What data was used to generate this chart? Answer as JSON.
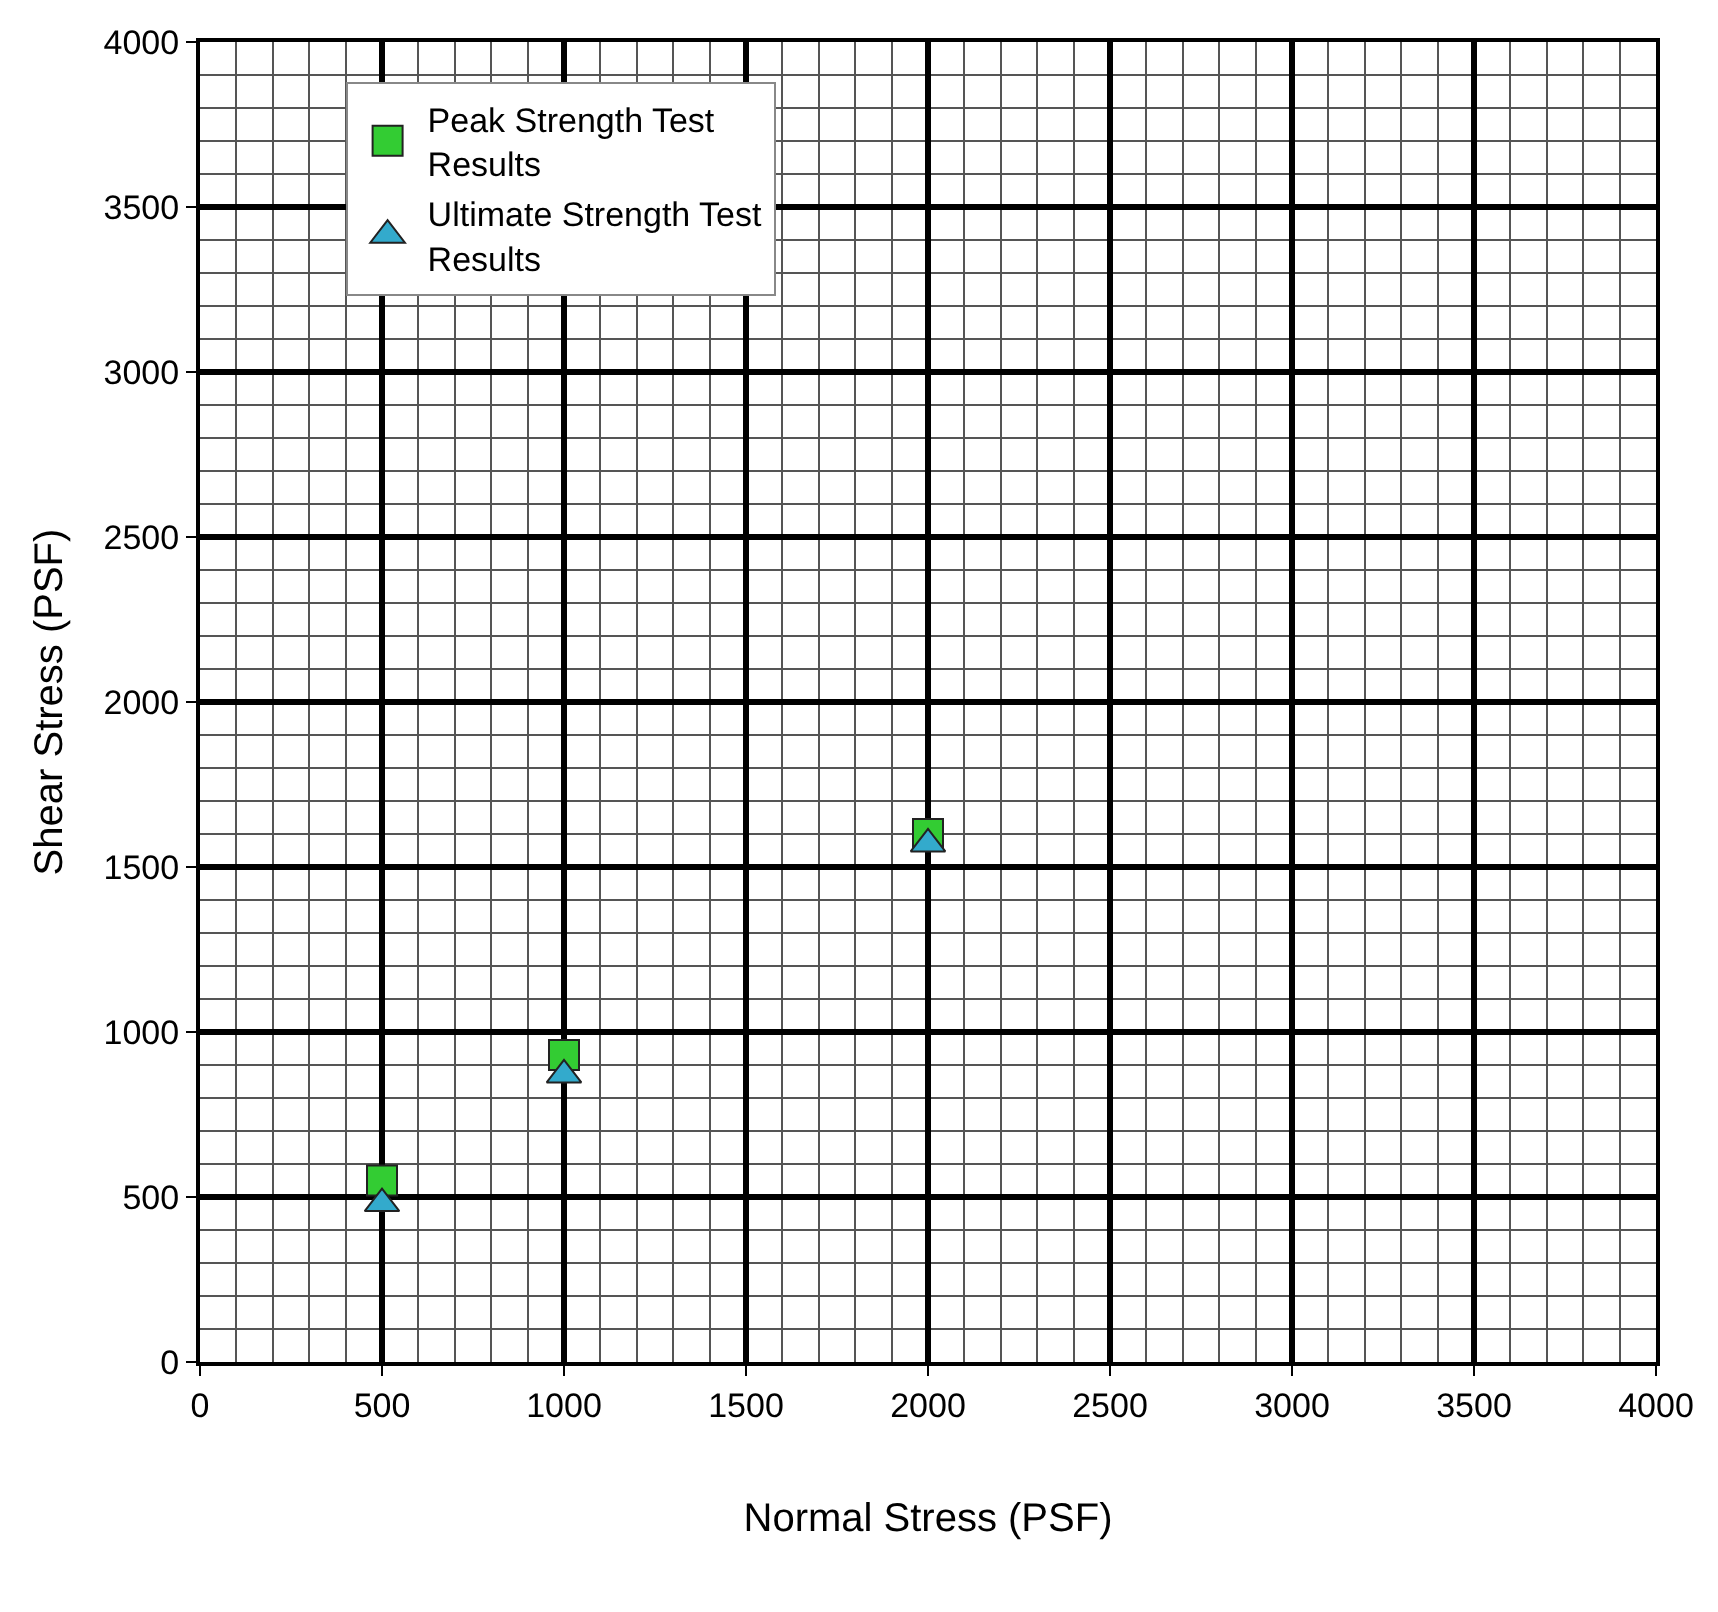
{
  "chart_data": {
    "type": "scatter",
    "xlabel": "Normal Stress (PSF)",
    "ylabel": "Shear Stress (PSF)",
    "x": [
      500,
      1000,
      2000
    ],
    "series": [
      {
        "name": "Peak Strength Test Results",
        "color": "#33cc33",
        "marker": "square",
        "values": [
          550,
          930,
          1600
        ]
      },
      {
        "name": "Ultimate Strength Test Results",
        "color": "#33aacc",
        "marker": "triangle",
        "values": [
          480,
          870,
          1570
        ]
      }
    ],
    "xlim": [
      0,
      4000
    ],
    "ylim": [
      0,
      4000
    ],
    "xticks": [
      0,
      500,
      1000,
      1500,
      2000,
      2500,
      3000,
      3500,
      4000
    ],
    "yticks": [
      0,
      500,
      1000,
      1500,
      2000,
      2500,
      3000,
      3500,
      4000
    ],
    "grid": true,
    "legend": "top left"
  }
}
